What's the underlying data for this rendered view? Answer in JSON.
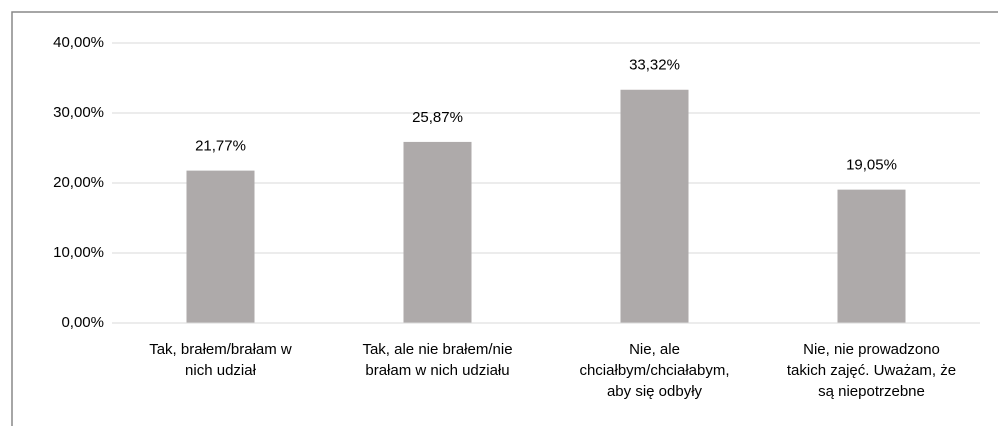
{
  "chart_data": {
    "type": "bar",
    "categories": [
      "Tak, brałem/brałam w\nnich udział",
      "Tak, ale nie brałem/nie\nbrałam w nich udziału",
      "Nie, ale\nchciałbym/chciałabym,\naby się odbyły",
      "Nie, nie prowadzono\ntakich zajęć. Uważam, że\nsą niepotrzebne"
    ],
    "values": [
      21.77,
      25.87,
      33.32,
      19.05
    ],
    "value_labels": [
      "21,77%",
      "25,87%",
      "33,32%",
      "19,05%"
    ],
    "color": "#aeaaaa",
    "ylim": [
      0,
      40
    ],
    "yticks": [
      {
        "value": 0,
        "label": "0,00%"
      },
      {
        "value": 10,
        "label": "10,00%"
      },
      {
        "value": 20,
        "label": "20,00%"
      },
      {
        "value": 30,
        "label": "30,00%"
      },
      {
        "value": 40,
        "label": "40,00%"
      }
    ],
    "grid": true
  }
}
